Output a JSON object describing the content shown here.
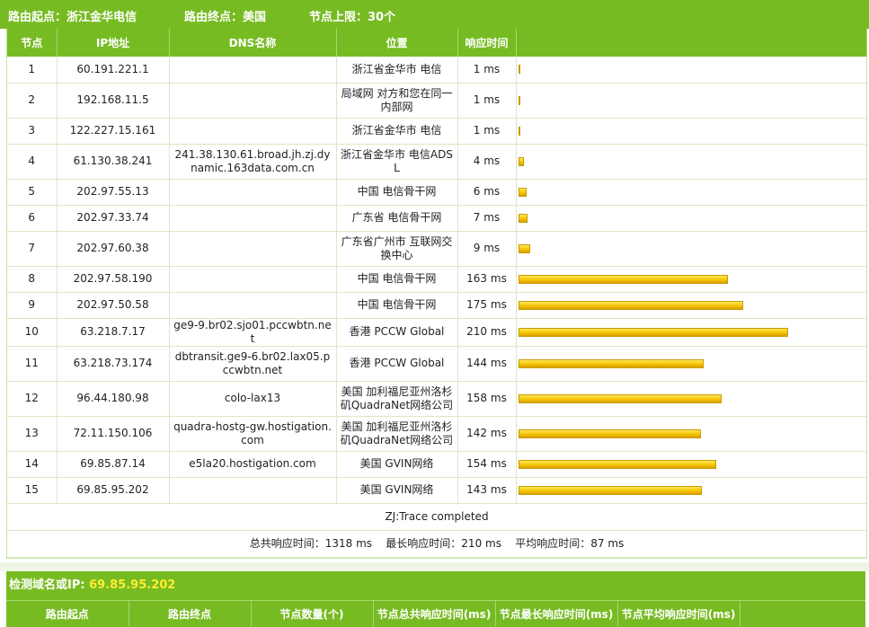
{
  "top": {
    "origin_label": "路由起点：",
    "origin": "浙江金华电信",
    "dest_label": "路由终点：",
    "dest": "美国",
    "limit_label": "节点上限：",
    "limit": "30个"
  },
  "columns": {
    "node": "节点",
    "ip": "IP地址",
    "dns": "DNS名称",
    "location": "位置",
    "time": "响应时间"
  },
  "hops": [
    {
      "node": "1",
      "ip": "60.191.221.1",
      "dns": "",
      "location": "浙江省金华市 电信",
      "time": "1 ms",
      "ms": 1
    },
    {
      "node": "2",
      "ip": "192.168.11.5",
      "dns": "",
      "location": "局域网 对方和您在同一内部网",
      "time": "1 ms",
      "ms": 1
    },
    {
      "node": "3",
      "ip": "122.227.15.161",
      "dns": "",
      "location": "浙江省金华市 电信",
      "time": "1 ms",
      "ms": 1
    },
    {
      "node": "4",
      "ip": "61.130.38.241",
      "dns": "241.38.130.61.broad.jh.zj.dynamic.163data.com.cn",
      "location": "浙江省金华市 电信ADSL",
      "time": "4 ms",
      "ms": 4
    },
    {
      "node": "5",
      "ip": "202.97.55.13",
      "dns": "",
      "location": "中国 电信骨干网",
      "time": "6 ms",
      "ms": 6
    },
    {
      "node": "6",
      "ip": "202.97.33.74",
      "dns": "",
      "location": "广东省 电信骨干网",
      "time": "7 ms",
      "ms": 7
    },
    {
      "node": "7",
      "ip": "202.97.60.38",
      "dns": "",
      "location": "广东省广州市 互联网交换中心",
      "time": "9 ms",
      "ms": 9
    },
    {
      "node": "8",
      "ip": "202.97.58.190",
      "dns": "",
      "location": "中国 电信骨干网",
      "time": "163 ms",
      "ms": 163
    },
    {
      "node": "9",
      "ip": "202.97.50.58",
      "dns": "",
      "location": "中国 电信骨干网",
      "time": "175 ms",
      "ms": 175
    },
    {
      "node": "10",
      "ip": "63.218.7.17",
      "dns": "ge9-9.br02.sjo01.pccwbtn.net",
      "location": "香港 PCCW Global",
      "time": "210 ms",
      "ms": 210
    },
    {
      "node": "11",
      "ip": "63.218.73.174",
      "dns": "dbtransit.ge9-6.br02.lax05.pccwbtn.net",
      "location": "香港 PCCW Global",
      "time": "144 ms",
      "ms": 144
    },
    {
      "node": "12",
      "ip": "96.44.180.98",
      "dns": "colo-lax13",
      "location": "美国 加利福尼亚州洛杉矶QuadraNet网络公司",
      "time": "158 ms",
      "ms": 158
    },
    {
      "node": "13",
      "ip": "72.11.150.106",
      "dns": "quadra-hostg-gw.hostigation.com",
      "location": "美国 加利福尼亚州洛杉矶QuadraNet网络公司",
      "time": "142 ms",
      "ms": 142
    },
    {
      "node": "14",
      "ip": "69.85.87.14",
      "dns": "e5la20.hostigation.com",
      "location": "美国 GVIN网络",
      "time": "154 ms",
      "ms": 154
    },
    {
      "node": "15",
      "ip": "69.85.95.202",
      "dns": "",
      "location": "美国 GVIN网络",
      "time": "143 ms",
      "ms": 143
    }
  ],
  "status": "ZJ:Trace completed",
  "totals": {
    "total_label": "总共响应时间：",
    "total": "1318 ms",
    "max_label": "最长响应时间：",
    "max": "210 ms",
    "avg_label": "平均响应时间：",
    "avg": "87 ms"
  },
  "summary": {
    "title_label": "检测域名或IP:",
    "title_ip": "69.85.95.202",
    "columns": [
      "路由起点",
      "路由终点",
      "节点数量(个)",
      "节点总共响应时间(ms)",
      "节点最长响应时间(ms)",
      "节点平均响应时间(ms)"
    ]
  },
  "colors": {
    "header_green": "#77bb22",
    "bar_yellow": "#f4c400",
    "ip_highlight": "#ffee33"
  }
}
